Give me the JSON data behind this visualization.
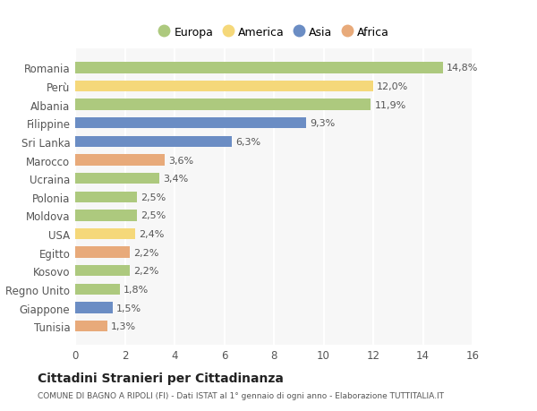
{
  "countries": [
    "Tunisia",
    "Giappone",
    "Regno Unito",
    "Kosovo",
    "Egitto",
    "USA",
    "Moldova",
    "Polonia",
    "Ucraina",
    "Marocco",
    "Sri Lanka",
    "Filippine",
    "Albania",
    "Perù",
    "Romania"
  ],
  "values": [
    1.3,
    1.5,
    1.8,
    2.2,
    2.2,
    2.4,
    2.5,
    2.5,
    3.4,
    3.6,
    6.3,
    9.3,
    11.9,
    12.0,
    14.8
  ],
  "labels": [
    "1,3%",
    "1,5%",
    "1,8%",
    "2,2%",
    "2,2%",
    "2,4%",
    "2,5%",
    "2,5%",
    "3,4%",
    "3,6%",
    "6,3%",
    "9,3%",
    "11,9%",
    "12,0%",
    "14,8%"
  ],
  "categories": [
    "Africa",
    "Asia",
    "Europa",
    "Europa",
    "Africa",
    "America",
    "Europa",
    "Europa",
    "Europa",
    "Africa",
    "Asia",
    "Asia",
    "Europa",
    "America",
    "Europa"
  ],
  "colors": {
    "Europa": "#adc97e",
    "America": "#f5d87a",
    "Asia": "#6b8dc4",
    "Africa": "#e8aa7a"
  },
  "legend_order": [
    "Europa",
    "America",
    "Asia",
    "Africa"
  ],
  "title": "Cittadini Stranieri per Cittadinanza",
  "subtitle": "COMUNE DI BAGNO A RIPOLI (FI) - Dati ISTAT al 1° gennaio di ogni anno - Elaborazione TUTTITALIA.IT",
  "xlim": [
    0,
    16
  ],
  "xticks": [
    0,
    2,
    4,
    6,
    8,
    10,
    12,
    14,
    16
  ],
  "background_color": "#ffffff",
  "plot_bg_color": "#f7f7f7",
  "grid_color": "#ffffff",
  "bar_height": 0.6,
  "label_fontsize": 8,
  "tick_fontsize": 8.5,
  "legend_fontsize": 9
}
